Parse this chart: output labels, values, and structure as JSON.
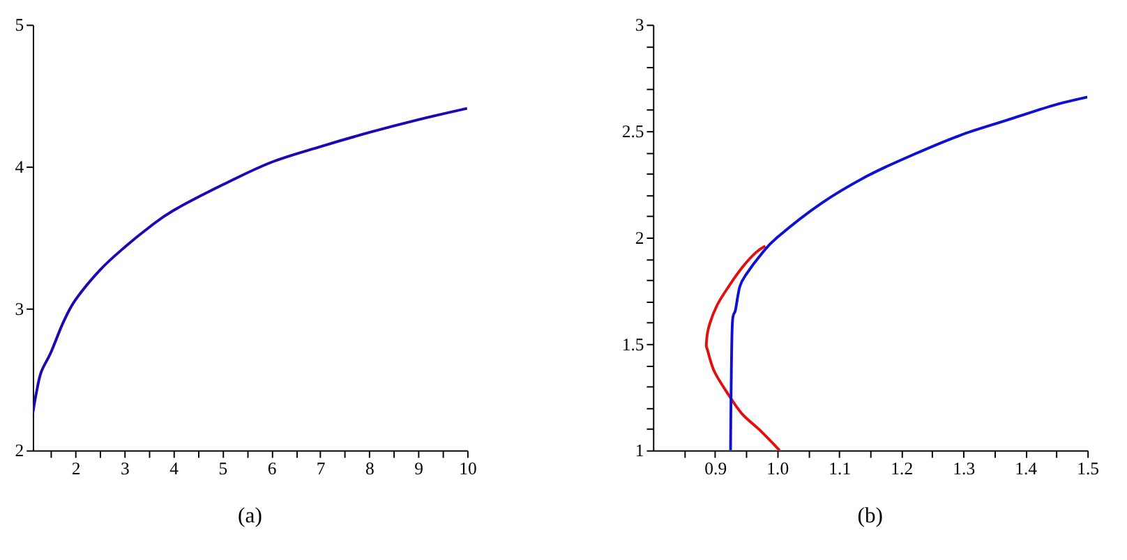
{
  "chart_data": [
    {
      "type": "line",
      "title": "(a)",
      "xlim": [
        1.13,
        10
      ],
      "ylim": [
        2,
        5
      ],
      "xticks": [
        {
          "value": 1.5,
          "label": null
        },
        2,
        {
          "value": 2.5,
          "label": null
        },
        3,
        {
          "value": 3.5,
          "label": null
        },
        4,
        {
          "value": 4.5,
          "label": null
        },
        5,
        {
          "value": 5.5,
          "label": null
        },
        6,
        {
          "value": 6.5,
          "label": null
        },
        7,
        {
          "value": 7.5,
          "label": null
        },
        8,
        {
          "value": 8.5,
          "label": null
        },
        9,
        {
          "value": 9.5,
          "label": null
        },
        10
      ],
      "yticks": [
        2,
        3,
        4,
        5
      ],
      "grid": false,
      "marker": "none",
      "line_style": "solid",
      "series": [
        {
          "color": "#1a0ab4",
          "x": [
            1.13,
            1.2,
            1.3,
            1.5,
            1.75,
            2,
            2.5,
            3,
            3.5,
            4,
            5,
            6,
            7,
            8,
            9,
            10
          ],
          "values": [
            2.26,
            2.4,
            2.55,
            2.69,
            2.9,
            3.06,
            3.27,
            3.43,
            3.57,
            3.69,
            3.87,
            4.03,
            4.14,
            4.24,
            4.33,
            4.41
          ]
        }
      ]
    },
    {
      "type": "line",
      "title": "(b)",
      "xlim": [
        0.8,
        1.5
      ],
      "ylim": [
        1,
        3
      ],
      "xticks": [
        {
          "value": 0.85,
          "label": null
        },
        {
          "value": 0.9,
          "label": "0.9"
        },
        {
          "value": 0.95,
          "label": null
        },
        {
          "value": 1.0,
          "label": "1.0"
        },
        {
          "value": 1.05,
          "label": null
        },
        {
          "value": 1.1,
          "label": "1.1"
        },
        {
          "value": 1.15,
          "label": null
        },
        {
          "value": 1.2,
          "label": "1.2"
        },
        {
          "value": 1.25,
          "label": null
        },
        {
          "value": 1.3,
          "label": "1.3"
        },
        {
          "value": 1.35,
          "label": null
        },
        {
          "value": 1.4,
          "label": "1.4"
        },
        {
          "value": 1.45,
          "label": null
        },
        {
          "value": 1.5,
          "label": "1.5"
        }
      ],
      "yticks": [
        1,
        {
          "value": 1.1,
          "label": null
        },
        {
          "value": 1.2,
          "label": null
        },
        {
          "value": 1.3,
          "label": null
        },
        {
          "value": 1.4,
          "label": null
        },
        1.5,
        {
          "value": 1.6,
          "label": null
        },
        {
          "value": 1.7,
          "label": null
        },
        {
          "value": 1.8,
          "label": null
        },
        {
          "value": 1.9,
          "label": null
        },
        2,
        {
          "value": 2.1,
          "label": null
        },
        {
          "value": 2.2,
          "label": null
        },
        {
          "value": 2.3,
          "label": null
        },
        {
          "value": 2.4,
          "label": null
        },
        2.5,
        {
          "value": 2.6,
          "label": null
        },
        {
          "value": 2.7,
          "label": null
        },
        {
          "value": 2.8,
          "label": null
        },
        {
          "value": 2.9,
          "label": null
        },
        3
      ],
      "grid": false,
      "marker": "none",
      "line_style": "solid",
      "series": [
        {
          "color": "#e01010",
          "x": [
            1.004,
            0.974,
            0.944,
            0.922,
            0.899,
            0.888,
            0.886,
            0.89,
            0.903,
            0.922,
            0.944,
            0.966,
            0.981
          ],
          "values": [
            1.0,
            1.09,
            1.17,
            1.26,
            1.37,
            1.47,
            1.5,
            1.58,
            1.68,
            1.77,
            1.86,
            1.93,
            1.96
          ]
        },
        {
          "color": "#1010d0",
          "x": [
            0.925,
            0.926,
            0.928,
            0.933,
            0.94,
            0.951,
            0.974,
            1.0,
            1.071,
            1.146,
            1.22,
            1.295,
            1.369,
            1.444,
            1.5
          ],
          "values": [
            1.0,
            1.3,
            1.6,
            1.66,
            1.77,
            1.83,
            1.92,
            2.0,
            2.16,
            2.29,
            2.39,
            2.48,
            2.55,
            2.62,
            2.66
          ]
        }
      ]
    }
  ]
}
